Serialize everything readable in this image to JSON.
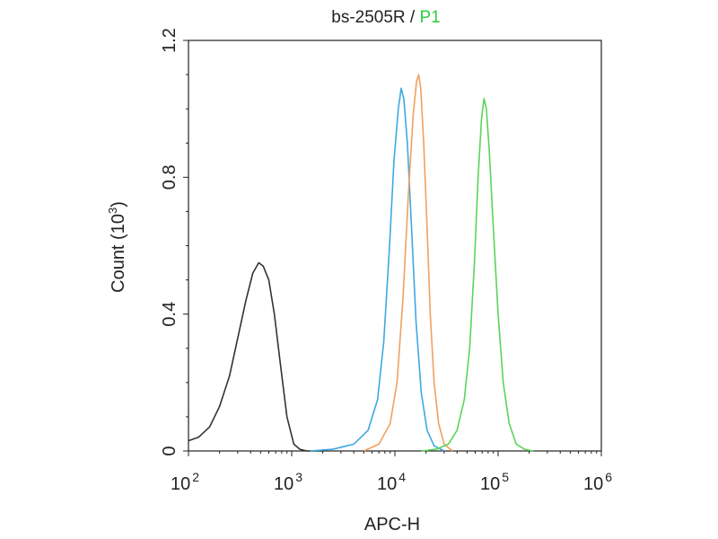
{
  "title": {
    "part1": "bs-2505R",
    "separator": " / ",
    "part2": "P1"
  },
  "colors": {
    "title_p1": "#2ecc40",
    "axis": "#222222"
  },
  "chart_data": {
    "type": "line",
    "title": "bs-2505R / P1",
    "xlabel": "APC-H",
    "ylabel": "Count",
    "ylabel_unit_base": "10",
    "ylabel_unit_exp": "3",
    "x_scale": "log",
    "xlim": [
      100,
      1000000
    ],
    "ylim": [
      0,
      1.2
    ],
    "x_ticks": [
      {
        "value": 100,
        "base": "10",
        "exp": "2"
      },
      {
        "value": 1000,
        "base": "10",
        "exp": "3"
      },
      {
        "value": 10000,
        "base": "10",
        "exp": "4"
      },
      {
        "value": 100000,
        "base": "10",
        "exp": "5"
      },
      {
        "value": 1000000,
        "base": "10",
        "exp": "6"
      }
    ],
    "y_ticks": [
      {
        "value": 0,
        "label": "0"
      },
      {
        "value": 0.4,
        "label": "0.4"
      },
      {
        "value": 0.8,
        "label": "0.8"
      },
      {
        "value": 1.2,
        "label": "1.2"
      }
    ],
    "grid": false,
    "legend": "none",
    "series": [
      {
        "color": "#333333",
        "x": [
          100,
          125,
          160,
          200,
          250,
          300,
          360,
          420,
          480,
          530,
          600,
          680,
          780,
          900,
          1050,
          1200,
          1400,
          1700,
          2000
        ],
        "y": [
          0.03,
          0.04,
          0.07,
          0.13,
          0.22,
          0.33,
          0.44,
          0.52,
          0.55,
          0.54,
          0.5,
          0.4,
          0.25,
          0.1,
          0.02,
          0.005,
          0,
          0,
          0
        ]
      },
      {
        "color": "#3ea8e0",
        "x": [
          1500,
          2500,
          4000,
          5500,
          6800,
          7800,
          8800,
          9800,
          10800,
          11500,
          12200,
          13200,
          14500,
          16000,
          18000,
          20500,
          24000,
          30000
        ],
        "y": [
          0,
          0.005,
          0.02,
          0.06,
          0.15,
          0.32,
          0.58,
          0.85,
          1.0,
          1.06,
          1.03,
          0.9,
          0.65,
          0.38,
          0.17,
          0.06,
          0.015,
          0
        ]
      },
      {
        "color": "#f0a060",
        "x": [
          5000,
          7000,
          9000,
          10500,
          12000,
          13500,
          15000,
          16200,
          17000,
          17800,
          19000,
          20500,
          22000,
          24000,
          26500,
          30000,
          36000
        ],
        "y": [
          0,
          0.02,
          0.08,
          0.2,
          0.45,
          0.75,
          0.98,
          1.08,
          1.1,
          1.06,
          0.9,
          0.65,
          0.4,
          0.2,
          0.08,
          0.02,
          0
        ]
      },
      {
        "color": "#5ad45a",
        "x": [
          18000,
          25000,
          33000,
          40000,
          47000,
          53000,
          59000,
          64000,
          69000,
          73000,
          77000,
          82000,
          90000,
          100000,
          112000,
          128000,
          150000,
          180000,
          220000
        ],
        "y": [
          0,
          0.005,
          0.02,
          0.06,
          0.15,
          0.3,
          0.55,
          0.8,
          0.97,
          1.03,
          1.0,
          0.88,
          0.65,
          0.4,
          0.2,
          0.08,
          0.02,
          0.005,
          0
        ]
      }
    ]
  }
}
